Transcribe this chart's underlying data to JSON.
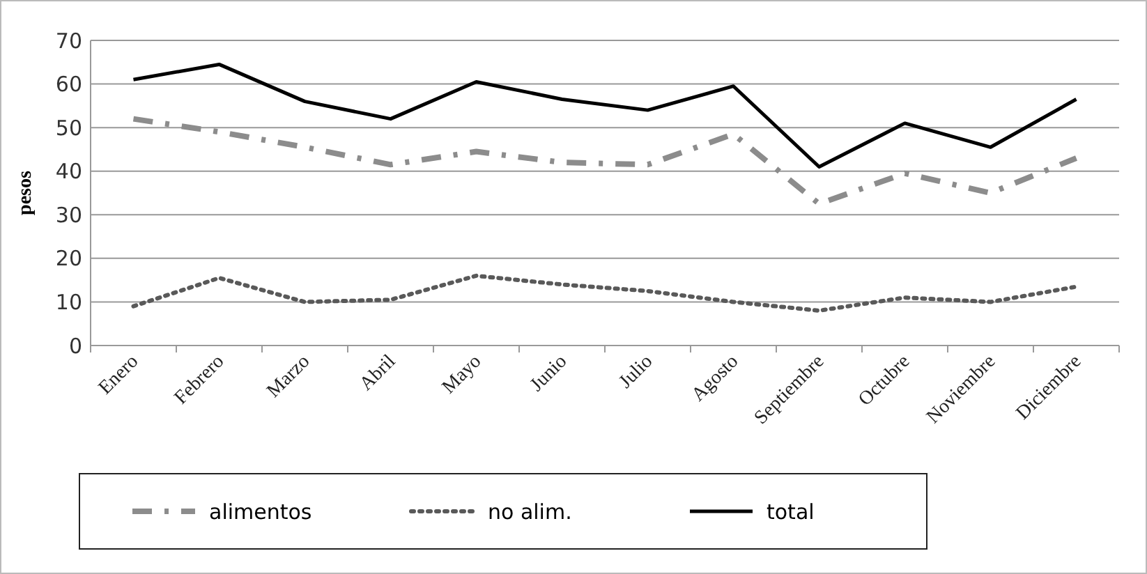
{
  "chart_data": {
    "type": "line",
    "ylabel": "pesos",
    "categories": [
      "Enero",
      "Febrero",
      "Marzo",
      "Abril",
      "Mayo",
      "Junio",
      "Julio",
      "Agosto",
      "Septiembre",
      "Octubre",
      "Noviembre",
      "Diciembre"
    ],
    "series": [
      {
        "name": "alimentos",
        "color": "#8c8c8c",
        "line_style": "dashed",
        "values": [
          52,
          49,
          45.5,
          41.5,
          44.5,
          42,
          41.5,
          48.5,
          32.5,
          39.5,
          35,
          43
        ]
      },
      {
        "name": "no alim.",
        "color": "#595959",
        "line_style": "dotted",
        "values": [
          9,
          15.5,
          10,
          10.5,
          16,
          14,
          12.5,
          10,
          8,
          11,
          10,
          13.5
        ]
      },
      {
        "name": "total",
        "color": "#000000",
        "line_style": "solid",
        "values": [
          61,
          64.5,
          56,
          52,
          60.5,
          56.5,
          54,
          59.5,
          41,
          51,
          45.5,
          56.5
        ]
      }
    ],
    "ylim": [
      0,
      70
    ],
    "yticks": [
      0,
      10,
      20,
      30,
      40,
      50,
      60,
      70
    ],
    "grid": "y",
    "legend": "bottom",
    "marker": "none"
  }
}
